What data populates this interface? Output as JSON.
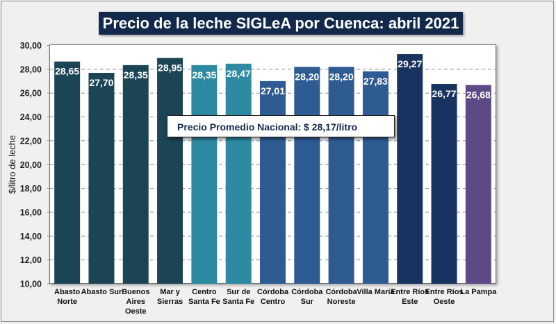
{
  "chart_data": {
    "type": "bar",
    "title": "Precio de la leche SIGLeA por Cuenca: abril 2021",
    "xlabel": "",
    "ylabel": "$/litro de leche",
    "ylim": [
      10,
      30
    ],
    "yticks": [
      10,
      12,
      14,
      16,
      18,
      20,
      22,
      24,
      26,
      28,
      30
    ],
    "ytick_labels": [
      "10,00",
      "12,00",
      "14,00",
      "16,00",
      "18,00",
      "20,00",
      "22,00",
      "24,00",
      "26,00",
      "28,00",
      "30,00"
    ],
    "grid": "horizontal-dashed",
    "categories": [
      [
        "Abasto",
        "Norte"
      ],
      [
        "Abasto Sur"
      ],
      [
        "Buenos",
        "Aires",
        "Oeste"
      ],
      [
        "Mar y",
        "Sierras"
      ],
      [
        "Centro",
        "Santa Fe"
      ],
      [
        "Sur de",
        "Santa Fe"
      ],
      [
        "Córdoba",
        "Centro"
      ],
      [
        "Córdoba",
        "Sur"
      ],
      [
        "Córdoba",
        "Noreste"
      ],
      [
        "Villa María"
      ],
      [
        "Entre Ríos",
        "Este"
      ],
      [
        "Entre Ríos",
        "Oeste"
      ],
      [
        "La Pampa"
      ]
    ],
    "values": [
      28.65,
      27.7,
      28.35,
      28.95,
      28.35,
      28.47,
      27.01,
      28.2,
      28.2,
      27.83,
      29.27,
      26.77,
      26.68
    ],
    "value_labels": [
      "28,65",
      "27,70",
      "28,35",
      "28,95",
      "28,35",
      "28,47",
      "27,01",
      "28,20",
      "28,20",
      "27,83",
      "29,27",
      "26,77",
      "26,68"
    ],
    "bar_colors": [
      "#1b4555",
      "#1b4555",
      "#1b4555",
      "#1b4555",
      "#2e8aa0",
      "#2e8aa0",
      "#2f5b93",
      "#2f5b93",
      "#2f5b93",
      "#2f5b93",
      "#193360",
      "#193360",
      "#5d4a85"
    ],
    "annotation": "Precio Promedio Nacional: $ 28,17/litro",
    "legend": "none"
  },
  "colors": {
    "title_bg": "#13294b",
    "annotation_text": "#13294b"
  }
}
